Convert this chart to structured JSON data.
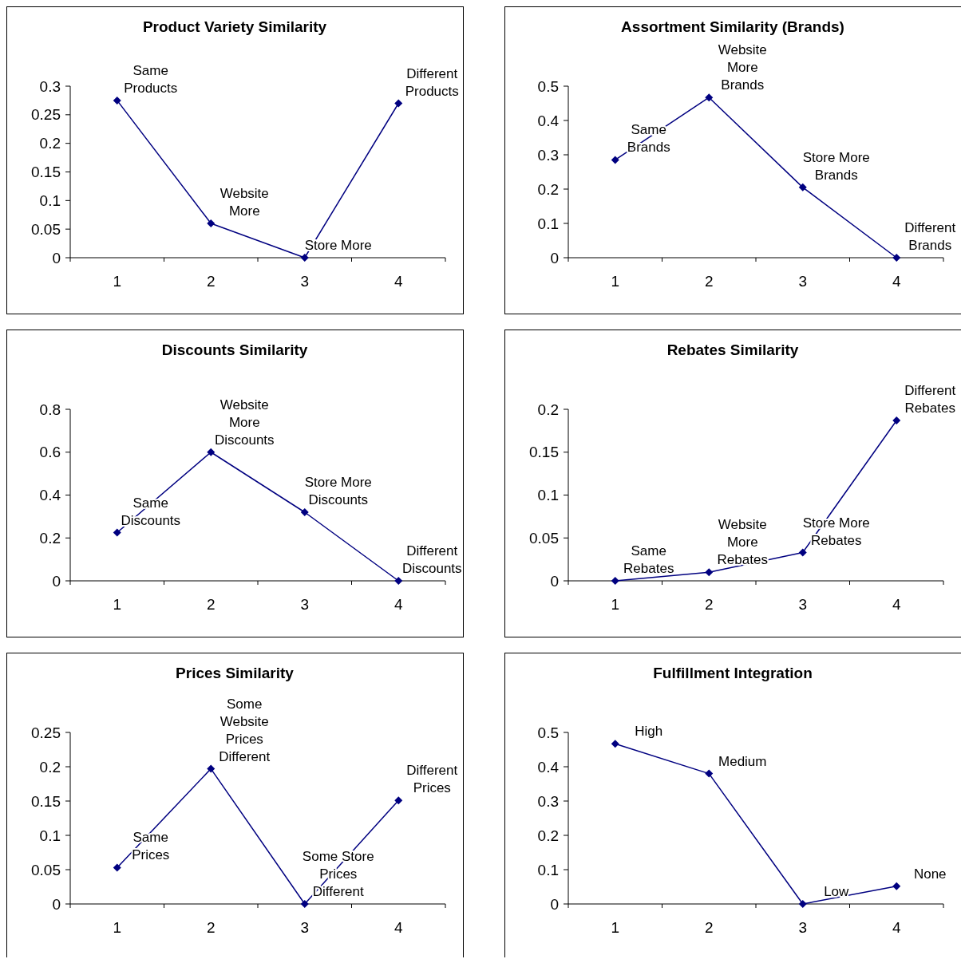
{
  "chart_data": [
    {
      "type": "line",
      "title": "Product Variety Similarity",
      "categories": [
        "1",
        "2",
        "3",
        "4"
      ],
      "series": [
        {
          "color": "#000080",
          "values": [
            0.275,
            0.06,
            0,
            0.27
          ]
        }
      ],
      "ylim": [
        0,
        0.3
      ],
      "yticks": [
        0,
        0.05,
        0.1,
        0.15,
        0.2,
        0.25,
        0.3
      ],
      "marker": "diamond",
      "grid": false,
      "annotations": [
        {
          "text": "Same\nProducts",
          "x": "1",
          "y": 0.275
        },
        {
          "text": "Website\nMore",
          "x": "2",
          "y": 0.06
        },
        {
          "text": "Store More",
          "x": "3",
          "y": 0
        },
        {
          "text": "Different\nProducts",
          "x": "4",
          "y": 0.27
        }
      ]
    },
    {
      "type": "line",
      "title": "Assortment Similarity (Brands)",
      "categories": [
        "1",
        "2",
        "3",
        "4"
      ],
      "series": [
        {
          "color": "#000080",
          "values": [
            0.285,
            0.467,
            0.205,
            0
          ]
        }
      ],
      "ylim": [
        0,
        0.5
      ],
      "yticks": [
        0,
        0.1,
        0.2,
        0.3,
        0.4,
        0.5
      ],
      "marker": "diamond",
      "grid": false,
      "annotations": [
        {
          "text": "Same\nBrands",
          "x": "1",
          "y": 0.285
        },
        {
          "text": "Website\nMore\nBrands",
          "x": "2",
          "y": 0.467
        },
        {
          "text": "Store More\nBrands",
          "x": "3",
          "y": 0.205
        },
        {
          "text": "Different\nBrands",
          "x": "4",
          "y": 0
        }
      ]
    },
    {
      "type": "line",
      "title": "Discounts Similarity",
      "categories": [
        "1",
        "2",
        "3",
        "4"
      ],
      "series": [
        {
          "color": "#000080",
          "values": [
            0.225,
            0.6,
            0.32,
            0
          ]
        }
      ],
      "ylim": [
        0,
        0.8
      ],
      "yticks": [
        0,
        0.2,
        0.4,
        0.6,
        0.8
      ],
      "marker": "diamond",
      "grid": false,
      "annotations": [
        {
          "text": "Same\nDiscounts",
          "x": "1",
          "y": 0.225
        },
        {
          "text": "Website\nMore\nDiscounts",
          "x": "2",
          "y": 0.6
        },
        {
          "text": "Store More\nDiscounts",
          "x": "3",
          "y": 0.32
        },
        {
          "text": "Different\nDiscounts",
          "x": "4",
          "y": 0
        }
      ]
    },
    {
      "type": "line",
      "title": "Rebates Similarity",
      "categories": [
        "1",
        "2",
        "3",
        "4"
      ],
      "series": [
        {
          "color": "#000080",
          "values": [
            0,
            0.01,
            0.033,
            0.187
          ]
        }
      ],
      "ylim": [
        0,
        0.2
      ],
      "yticks": [
        0,
        0.05,
        0.1,
        0.15,
        0.2
      ],
      "marker": "diamond",
      "grid": false,
      "annotations": [
        {
          "text": "Same\nRebates",
          "x": "1",
          "y": 0
        },
        {
          "text": "Website\nMore\nRebates",
          "x": "2",
          "y": 0.01
        },
        {
          "text": "Store More\nRebates",
          "x": "3",
          "y": 0.033
        },
        {
          "text": "Different\nRebates",
          "x": "4",
          "y": 0.187
        }
      ]
    },
    {
      "type": "line",
      "title": "Prices Similarity",
      "categories": [
        "1",
        "2",
        "3",
        "4"
      ],
      "series": [
        {
          "color": "#000080",
          "values": [
            0.053,
            0.197,
            0,
            0.151
          ]
        }
      ],
      "ylim": [
        0,
        0.25
      ],
      "yticks": [
        0,
        0.05,
        0.1,
        0.15,
        0.2,
        0.25
      ],
      "marker": "diamond",
      "grid": false,
      "annotations": [
        {
          "text": "Same\nPrices",
          "x": "1",
          "y": 0.053
        },
        {
          "text": "Some\nWebsite\nPrices\nDifferent",
          "x": "2",
          "y": 0.197
        },
        {
          "text": "Some Store\nPrices\nDifferent",
          "x": "3",
          "y": 0
        },
        {
          "text": "Different\nPrices",
          "x": "4",
          "y": 0.151
        }
      ]
    },
    {
      "type": "line",
      "title": "Fulfillment Integration",
      "categories": [
        "1",
        "2",
        "3",
        "4"
      ],
      "series": [
        {
          "color": "#000080",
          "values": [
            0.467,
            0.38,
            0,
            0.052
          ]
        }
      ],
      "ylim": [
        0,
        0.5
      ],
      "yticks": [
        0,
        0.1,
        0.2,
        0.3,
        0.4,
        0.5
      ],
      "marker": "diamond",
      "grid": false,
      "annotations": [
        {
          "text": "High",
          "x": "1",
          "y": 0.467
        },
        {
          "text": "Medium",
          "x": "2",
          "y": 0.38
        },
        {
          "text": "Low",
          "x": "3",
          "y": 0
        },
        {
          "text": "None",
          "x": "4",
          "y": 0.052
        }
      ]
    }
  ]
}
